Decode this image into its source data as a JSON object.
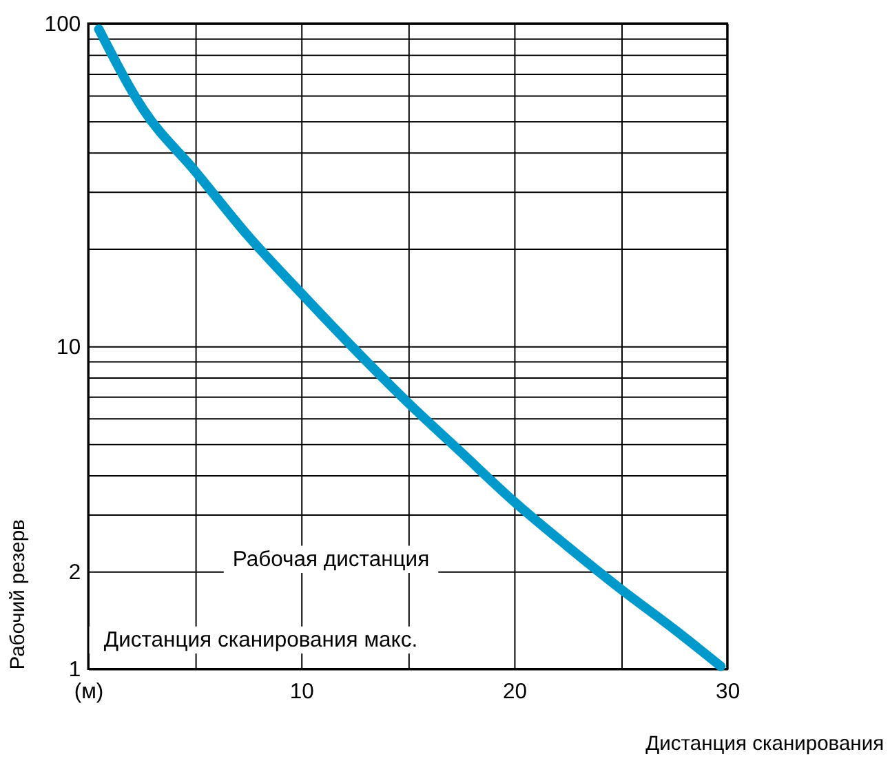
{
  "chart_data": {
    "type": "line",
    "xlabel": "Дистанция сканирования",
    "ylabel": "Рабочий резерв",
    "x": [
      0.5,
      2.6,
      5,
      7.5,
      10,
      12.5,
      15,
      17.5,
      20,
      22.5,
      25,
      27.5,
      29.7
    ],
    "series": [
      {
        "color": "#0099cc",
        "values": [
          96,
          54,
          35,
          22,
          14.6,
          9.8,
          6.7,
          4.7,
          3.3,
          2.4,
          1.77,
          1.33,
          1.02
        ]
      }
    ],
    "xlim": [
      0,
      30
    ],
    "ylim": [
      1,
      100
    ],
    "log": "y",
    "xticks": [
      {
        "value": 0,
        "label": "(м)"
      },
      {
        "value": 5,
        "label": null
      },
      10,
      {
        "value": 15,
        "label": null
      },
      20,
      {
        "value": 25,
        "label": null
      },
      30
    ],
    "yticks": [
      1,
      2,
      {
        "value": 3,
        "label": null
      },
      {
        "value": 4,
        "label": null
      },
      {
        "value": 5,
        "label": null
      },
      {
        "value": 6,
        "label": null
      },
      {
        "value": 7,
        "label": null
      },
      {
        "value": 8,
        "label": null
      },
      {
        "value": 9,
        "label": null
      },
      10,
      {
        "value": 20,
        "label": null
      },
      {
        "value": 30,
        "label": null
      },
      {
        "value": 40,
        "label": null
      },
      {
        "value": 50,
        "label": null
      },
      {
        "value": 60,
        "label": null
      },
      {
        "value": 70,
        "label": null
      },
      {
        "value": 80,
        "label": null
      },
      {
        "value": 90,
        "label": null
      },
      100
    ],
    "grid": true,
    "marker": "none",
    "line_style": "solid",
    "annotations": [
      "Рабочая дистанция",
      "Дистанция сканирования макс."
    ]
  }
}
